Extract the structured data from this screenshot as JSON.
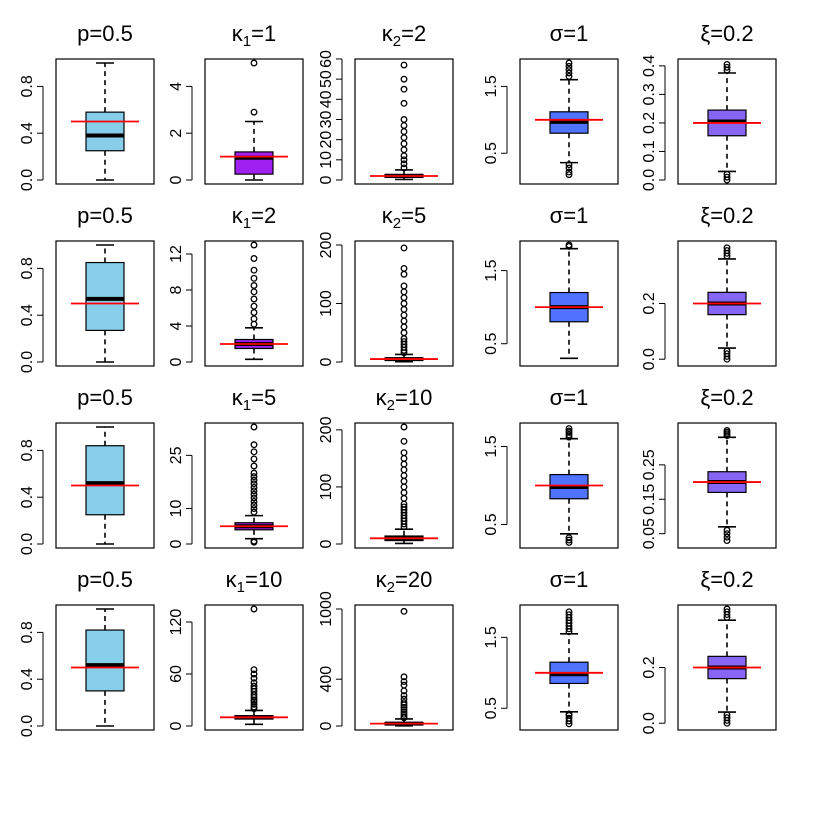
{
  "colors": {
    "p": "#87CEEB",
    "kappa1": "#A020F0",
    "kappa2": "#87CEEB",
    "sigma": "#4F73FF",
    "xi": "#8766F5",
    "true_value_line": "#FF0000"
  },
  "chart_data": [
    {
      "type": "box",
      "title": "p=0.5",
      "true_value": 0.5,
      "ylim": [
        0,
        1
      ],
      "yticks": [
        "0.0",
        "0.4",
        "0.8"
      ],
      "ytick_values": [
        0,
        0.4,
        0.8
      ],
      "box": {
        "whisker_low": 0.0,
        "q1": 0.25,
        "median": 0.38,
        "q3": 0.58,
        "whisker_high": 1.0
      },
      "outliers": [],
      "fill": "p"
    },
    {
      "type": "box",
      "title": "κ1=1",
      "true_value": 1,
      "ylim": [
        0,
        5
      ],
      "yticks": [
        "0",
        "2",
        "4"
      ],
      "ytick_values": [
        0,
        2,
        4
      ],
      "box": {
        "whisker_low": 0.0,
        "q1": 0.25,
        "median": 0.95,
        "q3": 1.2,
        "whisker_high": 2.5
      },
      "outliers": [
        2.9,
        5.0
      ],
      "fill": "kappa1"
    },
    {
      "type": "box",
      "title": "κ2=2",
      "true_value": 2,
      "ylim": [
        0,
        58
      ],
      "yticks": [
        "0",
        "10",
        "20",
        "30",
        "40",
        "50",
        "60"
      ],
      "ytick_values": [
        0,
        10,
        20,
        30,
        40,
        50,
        60
      ],
      "box": {
        "whisker_low": 0.3,
        "q1": 1.3,
        "median": 2.0,
        "q3": 2.8,
        "whisker_high": 5.0
      },
      "outliers": [
        6,
        8,
        10,
        12,
        15,
        18,
        21,
        24,
        27,
        30,
        38,
        45,
        50,
        57
      ],
      "fill": "kappa2"
    },
    {
      "type": "box",
      "title": "σ=1",
      "true_value": 1,
      "ylim": [
        0.1,
        1.85
      ],
      "yticks": [
        "0.5",
        "1.5"
      ],
      "ytick_values": [
        0.5,
        1.5
      ],
      "box": {
        "whisker_low": 0.36,
        "q1": 0.8,
        "median": 0.97,
        "q3": 1.12,
        "whisker_high": 1.6
      },
      "outliers": [
        0.18,
        0.22,
        0.28,
        0.33,
        1.65,
        1.7,
        1.75,
        1.8,
        1.85
      ],
      "fill": "sigma"
    },
    {
      "type": "box",
      "title": "ξ=0.2",
      "true_value": 0.2,
      "ylim": [
        0,
        0.41
      ],
      "yticks": [
        "0.0",
        "0.1",
        "0.2",
        "0.3",
        "0.4"
      ],
      "ytick_values": [
        0,
        0.1,
        0.2,
        0.3,
        0.4
      ],
      "box": {
        "whisker_low": 0.03,
        "q1": 0.155,
        "median": 0.205,
        "q3": 0.245,
        "whisker_high": 0.375
      },
      "outliers": [
        0.0,
        0.01,
        0.02,
        0.385,
        0.395,
        0.405
      ],
      "fill": "xi"
    },
    {
      "type": "box",
      "title": "p=0.5",
      "true_value": 0.5,
      "ylim": [
        0,
        1
      ],
      "yticks": [
        "0.0",
        "0.4",
        "0.8"
      ],
      "ytick_values": [
        0,
        0.4,
        0.8
      ],
      "box": {
        "whisker_low": 0.0,
        "q1": 0.27,
        "median": 0.54,
        "q3": 0.85,
        "whisker_high": 1.0
      },
      "outliers": [],
      "fill": "p"
    },
    {
      "type": "box",
      "title": "κ1=2",
      "true_value": 2,
      "ylim": [
        0,
        13
      ],
      "yticks": [
        "0",
        "4",
        "8",
        "12"
      ],
      "ytick_values": [
        0,
        4,
        8,
        12
      ],
      "box": {
        "whisker_low": 0.3,
        "q1": 1.5,
        "median": 2.0,
        "q3": 2.5,
        "whisker_high": 3.8
      },
      "outliers": [
        4.2,
        4.8,
        5.5,
        6.2,
        7,
        7.8,
        8.5,
        9.3,
        10.2,
        11.5,
        13
      ],
      "fill": "kappa1"
    },
    {
      "type": "box",
      "title": "κ2=5",
      "true_value": 5,
      "ylim": [
        0,
        200
      ],
      "yticks": [
        "0",
        "100",
        "200"
      ],
      "ytick_values": [
        0,
        100,
        200
      ],
      "box": {
        "whisker_low": 0.5,
        "q1": 3.0,
        "median": 5.0,
        "q3": 7.0,
        "whisker_high": 13.0
      },
      "outliers": [
        16,
        20,
        25,
        30,
        35,
        40,
        50,
        60,
        70,
        80,
        90,
        100,
        110,
        120,
        130,
        150,
        160,
        195
      ],
      "fill": "kappa2"
    },
    {
      "type": "box",
      "title": "σ=1",
      "true_value": 1,
      "ylim": [
        0.25,
        1.85
      ],
      "yticks": [
        "0.5",
        "1.5"
      ],
      "ytick_values": [
        0.5,
        1.5
      ],
      "box": {
        "whisker_low": 0.3,
        "q1": 0.8,
        "median": 1.0,
        "q3": 1.2,
        "whisker_high": 1.8
      },
      "outliers": [
        1.83,
        1.85
      ],
      "fill": "sigma"
    },
    {
      "type": "box",
      "title": "ξ=0.2",
      "true_value": 0.2,
      "ylim": [
        -0.01,
        0.41
      ],
      "yticks": [
        "0.0",
        "0.2"
      ],
      "ytick_values": [
        0,
        0.2
      ],
      "box": {
        "whisker_low": 0.04,
        "q1": 0.16,
        "median": 0.2,
        "q3": 0.24,
        "whisker_high": 0.36
      },
      "outliers": [
        0.0,
        0.01,
        0.02,
        0.03,
        0.37,
        0.38,
        0.39,
        0.4
      ],
      "fill": "xi"
    },
    {
      "type": "box",
      "title": "p=0.5",
      "true_value": 0.5,
      "ylim": [
        0,
        1
      ],
      "yticks": [
        "0.0",
        "0.4",
        "0.8"
      ],
      "ytick_values": [
        0,
        0.4,
        0.8
      ],
      "box": {
        "whisker_low": 0.0,
        "q1": 0.25,
        "median": 0.52,
        "q3": 0.84,
        "whisker_high": 1.0
      },
      "outliers": [],
      "fill": "p"
    },
    {
      "type": "box",
      "title": "κ1=5",
      "true_value": 5,
      "ylim": [
        0,
        33
      ],
      "yticks": [
        "0",
        "10",
        "25"
      ],
      "ytick_values": [
        0,
        10,
        25
      ],
      "box": {
        "whisker_low": 1.5,
        "q1": 4.0,
        "median": 5.0,
        "q3": 6.0,
        "whisker_high": 8.0
      },
      "outliers": [
        0.5,
        0.8,
        9,
        10,
        11,
        12,
        13,
        14,
        15,
        16,
        17,
        18,
        19,
        20,
        22,
        24,
        26,
        28,
        33
      ],
      "fill": "kappa1"
    },
    {
      "type": "box",
      "title": "κ2=10",
      "true_value": 10,
      "ylim": [
        0,
        205
      ],
      "yticks": [
        "0",
        "100",
        "200"
      ],
      "ytick_values": [
        0,
        100,
        200
      ],
      "box": {
        "whisker_low": 1.0,
        "q1": 6.0,
        "median": 10.0,
        "q3": 14.0,
        "whisker_high": 26.0
      },
      "outliers": [
        30,
        35,
        40,
        45,
        50,
        55,
        60,
        65,
        70,
        80,
        90,
        100,
        110,
        120,
        130,
        140,
        150,
        160,
        180,
        205
      ],
      "fill": "kappa2"
    },
    {
      "type": "box",
      "title": "σ=1",
      "true_value": 1,
      "ylim": [
        0.25,
        1.75
      ],
      "yticks": [
        "0.5",
        "1.5"
      ],
      "ytick_values": [
        0.5,
        1.5
      ],
      "box": {
        "whisker_low": 0.38,
        "q1": 0.83,
        "median": 0.98,
        "q3": 1.14,
        "whisker_high": 1.6
      },
      "outliers": [
        0.27,
        0.3,
        0.33,
        1.62,
        1.65,
        1.68,
        1.7,
        1.73
      ],
      "fill": "sigma"
    },
    {
      "type": "box",
      "title": "ξ=0.2",
      "true_value": 0.2,
      "ylim": [
        0.02,
        0.36
      ],
      "yticks": [
        "0.05",
        "0.15",
        "0.25"
      ],
      "ytick_values": [
        0.05,
        0.15,
        0.25
      ],
      "box": {
        "whisker_low": 0.07,
        "q1": 0.17,
        "median": 0.2,
        "q3": 0.23,
        "whisker_high": 0.33
      },
      "outliers": [
        0.03,
        0.04,
        0.05,
        0.06,
        0.335,
        0.34,
        0.345,
        0.35
      ],
      "fill": "xi"
    },
    {
      "type": "box",
      "title": "p=0.5",
      "true_value": 0.5,
      "ylim": [
        0,
        1
      ],
      "yticks": [
        "0.0",
        "0.4",
        "0.8"
      ],
      "ytick_values": [
        0,
        0.4,
        0.8
      ],
      "box": {
        "whisker_low": 0.0,
        "q1": 0.3,
        "median": 0.52,
        "q3": 0.82,
        "whisker_high": 1.0
      },
      "outliers": [],
      "fill": "p"
    },
    {
      "type": "box",
      "title": "κ1=10",
      "true_value": 10,
      "ylim": [
        0,
        135
      ],
      "yticks": [
        "0",
        "60",
        "120"
      ],
      "ytick_values": [
        0,
        60,
        120
      ],
      "box": {
        "whisker_low": 2.0,
        "q1": 8.0,
        "median": 10.0,
        "q3": 12.0,
        "whisker_high": 18.0
      },
      "outliers": [
        20,
        22,
        25,
        28,
        30,
        33,
        36,
        40,
        43,
        46,
        50,
        55,
        60,
        65,
        135
      ],
      "fill": "kappa1"
    },
    {
      "type": "box",
      "title": "κ2=20",
      "true_value": 20,
      "ylim": [
        0,
        1000
      ],
      "yticks": [
        "0",
        "400",
        "1000"
      ],
      "ytick_values": [
        0,
        400,
        1000
      ],
      "box": {
        "whisker_low": 2.0,
        "q1": 10.0,
        "median": 20.0,
        "q3": 30.0,
        "whisker_high": 60.0
      },
      "outliers": [
        70,
        80,
        100,
        120,
        140,
        160,
        180,
        200,
        230,
        260,
        300,
        350,
        380,
        420,
        980
      ],
      "fill": "kappa2"
    },
    {
      "type": "box",
      "title": "σ=1",
      "true_value": 1,
      "ylim": [
        0.25,
        1.9
      ],
      "yticks": [
        "0.5",
        "1.5"
      ],
      "ytick_values": [
        0.5,
        1.5
      ],
      "box": {
        "whisker_low": 0.45,
        "q1": 0.85,
        "median": 0.98,
        "q3": 1.15,
        "whisker_high": 1.55
      },
      "outliers": [
        0.28,
        0.32,
        0.36,
        0.4,
        0.42,
        1.58,
        1.62,
        1.66,
        1.7,
        1.74,
        1.78,
        1.82,
        1.86
      ],
      "fill": "sigma"
    },
    {
      "type": "box",
      "title": "ξ=0.2",
      "true_value": 0.2,
      "ylim": [
        -0.01,
        0.41
      ],
      "yticks": [
        "0.0",
        "0.2"
      ],
      "ytick_values": [
        0,
        0.2
      ],
      "box": {
        "whisker_low": 0.04,
        "q1": 0.16,
        "median": 0.2,
        "q3": 0.24,
        "whisker_high": 0.37
      },
      "outliers": [
        0.0,
        0.01,
        0.02,
        0.03,
        0.38,
        0.39,
        0.4,
        0.41
      ],
      "fill": "xi"
    }
  ]
}
